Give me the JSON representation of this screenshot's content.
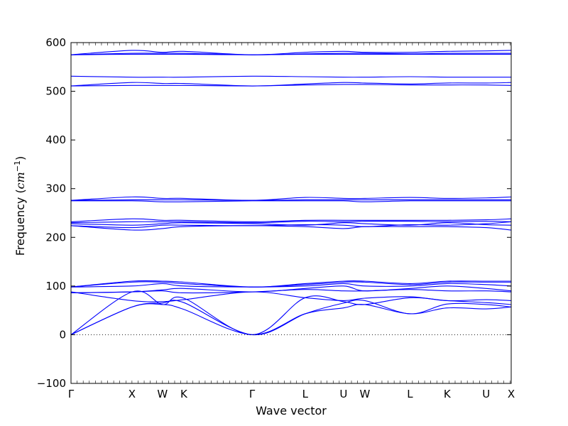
{
  "chart_data": {
    "type": "line",
    "xlabel": "Wave vector",
    "ylabel_prefix": "Frequency (",
    "ylabel_unit": "cm",
    "ylabel_exp": "−1",
    "ylabel_suffix": ")",
    "ylim": [
      -100,
      600
    ],
    "yticks": [
      "−100",
      "0",
      "100",
      "200",
      "300",
      "400",
      "500",
      "600"
    ],
    "ytick_values": [
      -100,
      0,
      100,
      200,
      300,
      400,
      500,
      600
    ],
    "xlim": [
      0,
      7.22
    ],
    "xticks": [
      {
        "label": "Γ",
        "x": 0
      },
      {
        "label": "X",
        "x": 1.0
      },
      {
        "label": "W",
        "x": 1.5
      },
      {
        "label": "K",
        "x": 1.85
      },
      {
        "label": "Γ",
        "x": 2.97
      },
      {
        "label": "L",
        "x": 3.84
      },
      {
        "label": "U",
        "x": 4.47
      },
      {
        "label": "W",
        "x": 4.82
      },
      {
        "label": "L",
        "x": 5.56
      },
      {
        "label": "K",
        "x": 6.17
      },
      {
        "label": "U",
        "x": 6.81
      },
      {
        "label": "X",
        "x": 7.22
      }
    ],
    "zero_line": 0,
    "grid": false,
    "line_color": "#0000ff",
    "series": [
      {
        "x": [
          0,
          1.0,
          1.5,
          1.85,
          2.97,
          3.84,
          4.47,
          4.82,
          5.56,
          6.17,
          6.81,
          7.22
        ],
        "y": [
          0,
          57,
          62,
          52,
          0,
          43,
          55,
          62,
          43,
          55,
          53,
          57
        ]
      },
      {
        "x": [
          0,
          1.0,
          1.5,
          1.85,
          2.97,
          3.84,
          4.47,
          4.82,
          5.56,
          6.17,
          6.81,
          7.22
        ],
        "y": [
          0,
          57,
          65,
          66,
          0,
          43,
          65,
          70,
          43,
          63,
          62,
          57
        ]
      },
      {
        "x": [
          0,
          1.0,
          1.5,
          1.85,
          2.97,
          3.84,
          4.47,
          4.82,
          5.56,
          6.17,
          6.81,
          7.22
        ],
        "y": [
          0,
          88,
          62,
          75,
          0,
          76,
          68,
          62,
          76,
          70,
          66,
          62
        ]
      },
      {
        "x": [
          0,
          1.0,
          1.5,
          1.85,
          2.97,
          3.84,
          4.47,
          4.82,
          5.56,
          6.17,
          6.81,
          7.22
        ],
        "y": [
          88,
          70,
          68,
          72,
          88,
          76,
          70,
          75,
          78,
          70,
          72,
          70
        ]
      },
      {
        "x": [
          0,
          1.0,
          1.5,
          1.85,
          2.97,
          3.84,
          4.47,
          4.82,
          5.56,
          6.17,
          6.81,
          7.22
        ],
        "y": [
          86,
          88,
          90,
          86,
          88,
          93,
          90,
          90,
          93,
          90,
          90,
          88
        ]
      },
      {
        "x": [
          0,
          1.0,
          1.5,
          1.85,
          2.97,
          3.84,
          4.47,
          4.82,
          5.56,
          6.17,
          6.81,
          7.22
        ],
        "y": [
          86,
          88,
          92,
          95,
          88,
          95,
          100,
          90,
          95,
          100,
          95,
          90
        ]
      },
      {
        "x": [
          0,
          1.0,
          1.5,
          1.85,
          2.97,
          3.84,
          4.47,
          4.82,
          5.56,
          6.17,
          6.81,
          7.22
        ],
        "y": [
          98,
          100,
          105,
          100,
          98,
          100,
          105,
          100,
          100,
          105,
          103,
          100
        ]
      },
      {
        "x": [
          0,
          1.0,
          1.5,
          1.85,
          2.97,
          3.84,
          4.47,
          4.82,
          5.56,
          6.17,
          6.81,
          7.22
        ],
        "y": [
          98,
          108,
          108,
          105,
          98,
          103,
          108,
          108,
          103,
          108,
          108,
          108
        ]
      },
      {
        "x": [
          0,
          1.0,
          1.5,
          1.85,
          2.97,
          3.84,
          4.47,
          4.82,
          5.56,
          6.17,
          6.81,
          7.22
        ],
        "y": [
          98,
          110,
          110,
          108,
          98,
          105,
          110,
          110,
          105,
          110,
          110,
          110
        ]
      },
      {
        "x": [
          0,
          1.0,
          1.5,
          1.85,
          2.97,
          3.84,
          4.47,
          4.82,
          5.56,
          6.17,
          6.81,
          7.22
        ],
        "y": [
          224,
          215,
          218,
          222,
          224,
          222,
          218,
          222,
          222,
          222,
          220,
          215
        ]
      },
      {
        "x": [
          0,
          1.0,
          1.5,
          1.85,
          2.97,
          3.84,
          4.47,
          4.82,
          5.56,
          6.17,
          6.81,
          7.22
        ],
        "y": [
          224,
          220,
          225,
          225,
          224,
          226,
          225,
          222,
          226,
          225,
          228,
          232
        ]
      },
      {
        "x": [
          0,
          1.0,
          1.5,
          1.85,
          2.97,
          3.84,
          4.47,
          4.82,
          5.56,
          6.17,
          6.81,
          7.22
        ],
        "y": [
          228,
          225,
          228,
          230,
          228,
          225,
          230,
          228,
          225,
          230,
          226,
          225
        ]
      },
      {
        "x": [
          0,
          1.0,
          1.5,
          1.85,
          2.97,
          3.84,
          4.47,
          4.82,
          5.56,
          6.17,
          6.81,
          7.22
        ],
        "y": [
          230,
          232,
          232,
          232,
          230,
          233,
          232,
          233,
          233,
          232,
          233,
          232
        ]
      },
      {
        "x": [
          0,
          1.0,
          1.5,
          1.85,
          2.97,
          3.84,
          4.47,
          4.82,
          5.56,
          6.17,
          6.81,
          7.22
        ],
        "y": [
          232,
          238,
          235,
          235,
          232,
          235,
          235,
          235,
          235,
          235,
          236,
          238
        ]
      },
      {
        "x": [
          0,
          1.0,
          1.5,
          1.85,
          2.97,
          3.84,
          4.47,
          4.82,
          5.56,
          6.17,
          6.81,
          7.22
        ],
        "y": [
          275,
          275,
          273,
          273,
          275,
          275,
          275,
          273,
          275,
          275,
          275,
          275
        ]
      },
      {
        "x": [
          0,
          1.0,
          1.5,
          1.85,
          2.97,
          3.84,
          4.47,
          4.82,
          5.56,
          6.17,
          6.81,
          7.22
        ],
        "y": [
          276,
          277,
          277,
          277,
          276,
          277,
          277,
          277,
          277,
          277,
          277,
          277
        ]
      },
      {
        "x": [
          0,
          1.0,
          1.5,
          1.85,
          2.97,
          3.84,
          4.47,
          4.82,
          5.56,
          6.17,
          6.81,
          7.22
        ],
        "y": [
          276,
          283,
          280,
          280,
          276,
          282,
          280,
          280,
          282,
          280,
          281,
          283
        ]
      },
      {
        "x": [
          0,
          1.0,
          1.5,
          1.85,
          2.97,
          3.84,
          4.47,
          4.82,
          5.56,
          6.17,
          6.81,
          7.22
        ],
        "y": [
          511,
          512,
          512,
          512,
          511,
          513,
          514,
          514,
          513,
          513,
          513,
          512
        ]
      },
      {
        "x": [
          0,
          1.0,
          1.5,
          1.85,
          2.97,
          3.84,
          4.47,
          4.82,
          5.56,
          6.17,
          6.81,
          7.22
        ],
        "y": [
          511,
          518,
          516,
          516,
          511,
          515,
          518,
          517,
          515,
          517,
          517,
          518
        ]
      },
      {
        "x": [
          0,
          1.0,
          1.5,
          1.85,
          2.97,
          3.84,
          4.47,
          4.82,
          5.56,
          6.17,
          6.81,
          7.22
        ],
        "y": [
          531,
          529,
          529,
          529,
          531,
          530,
          529,
          529,
          530,
          529,
          529,
          529
        ]
      },
      {
        "x": [
          0,
          1.0,
          1.5,
          1.85,
          2.97,
          3.84,
          4.47,
          4.82,
          5.56,
          6.17,
          6.81,
          7.22
        ],
        "y": [
          575,
          576,
          576,
          576,
          575,
          576,
          576,
          576,
          576,
          576,
          576,
          576
        ]
      },
      {
        "x": [
          0,
          1.0,
          1.5,
          1.85,
          2.97,
          3.84,
          4.47,
          4.82,
          5.56,
          6.17,
          6.81,
          7.22
        ],
        "y": [
          575,
          578,
          578,
          578,
          575,
          577,
          578,
          578,
          577,
          578,
          578,
          578
        ]
      },
      {
        "x": [
          0,
          1.0,
          1.5,
          1.85,
          2.97,
          3.84,
          4.47,
          4.82,
          5.56,
          6.17,
          6.81,
          7.22
        ],
        "y": [
          575,
          584,
          580,
          582,
          575,
          580,
          582,
          580,
          580,
          582,
          583,
          584
        ]
      }
    ]
  }
}
